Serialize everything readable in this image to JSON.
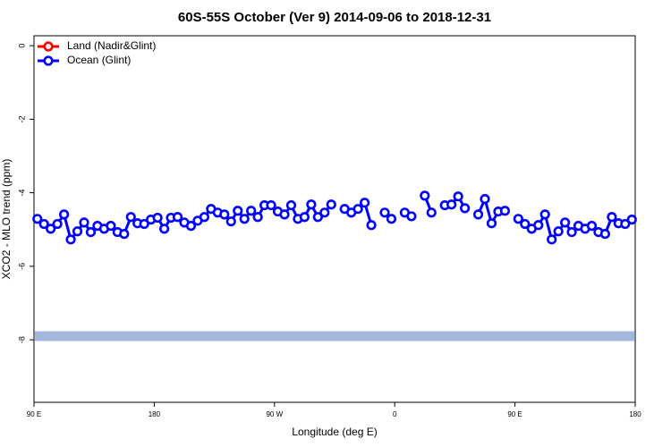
{
  "chart_data": {
    "type": "line",
    "title": "60S-55S October (Ver 9)   2014-09-06 to 2018-12-31",
    "x_label": "Longitude (deg E)",
    "y_label": "XCO2 - MLO trend (ppm)",
    "xlim": [
      90,
      540
    ],
    "xticks": [
      {
        "value": 90,
        "label": "90 E"
      },
      {
        "value": 180,
        "label": "180"
      },
      {
        "value": 270,
        "label": "90 W"
      },
      {
        "value": 360,
        "label": "0"
      },
      {
        "value": 450,
        "label": "90 E"
      },
      {
        "value": 540,
        "label": "180"
      }
    ],
    "ylim": [
      -9.7,
      0.27
    ],
    "yticks": [
      0,
      -2,
      -4,
      -6,
      -8
    ],
    "legend": "top-left",
    "reference_line": {
      "value": -7.9,
      "color": "#a3b8dc"
    },
    "x": [
      92.5,
      97.5,
      102.5,
      107.5,
      112.5,
      117.5,
      122.5,
      127.5,
      132.5,
      137.5,
      142.5,
      147.5,
      152.5,
      157.5,
      162.5,
      167.5,
      172.5,
      177.5,
      182.5,
      187.5,
      192.5,
      197.5,
      202.5,
      207.5,
      212.5,
      217.5,
      222.5,
      227.5,
      232.5,
      237.5,
      242.5,
      247.5,
      252.5,
      257.5,
      262.5,
      267.5,
      272.5,
      277.5,
      282.5,
      287.5,
      292.5,
      297.5,
      302.5,
      307.5,
      312.5,
      317.5,
      322.5,
      327.5,
      332.5,
      337.5,
      342.5,
      347.5,
      352.5,
      357.5,
      362.5,
      367.5,
      372.5,
      377.5,
      382.5,
      387.5,
      392.5,
      397.5,
      402.5,
      407.5,
      412.5,
      417.5,
      422.5,
      427.5,
      432.5,
      437.5,
      442.5,
      447.5,
      452.5,
      457.5,
      462.5,
      467.5,
      472.5,
      477.5,
      482.5,
      487.5,
      492.5,
      497.5,
      502.5,
      507.5,
      512.5,
      517.5,
      522.5,
      527.5,
      532.5,
      537.5
    ],
    "series": [
      {
        "name": "Land (Nadir&Glint)",
        "color": "#ff0000",
        "values": [
          null,
          null,
          null,
          null,
          null,
          null,
          null,
          null,
          null,
          null,
          null,
          null,
          null,
          null,
          null,
          null,
          null,
          null,
          null,
          null,
          null,
          null,
          null,
          null,
          null,
          null,
          null,
          null,
          null,
          null,
          null,
          null,
          null,
          null,
          null,
          null,
          null,
          null,
          null,
          null,
          null,
          null,
          null,
          null,
          null,
          null,
          null,
          null,
          null,
          null,
          null,
          null,
          null,
          null,
          null,
          null,
          null,
          null,
          null,
          null,
          null,
          null,
          null,
          null,
          null,
          null,
          null,
          null,
          null,
          null,
          null,
          null,
          null,
          null,
          null,
          null,
          null,
          null,
          null,
          null,
          null,
          null,
          null,
          null,
          null,
          null,
          null,
          null,
          null,
          null
        ]
      },
      {
        "name": "Ocean (Glint)",
        "color": "#0000ff",
        "values": [
          -4.71,
          -4.85,
          -4.98,
          -4.85,
          -4.59,
          -5.27,
          -5.05,
          -4.81,
          -5.07,
          -4.9,
          -4.98,
          -4.9,
          -5.07,
          -5.12,
          -4.66,
          -4.83,
          -4.85,
          -4.73,
          -4.68,
          -4.98,
          -4.68,
          -4.66,
          -4.81,
          -4.9,
          -4.76,
          -4.66,
          -4.44,
          -4.54,
          -4.59,
          -4.78,
          -4.49,
          -4.71,
          -4.49,
          -4.66,
          -4.34,
          -4.34,
          -4.51,
          -4.59,
          -4.34,
          -4.71,
          -4.66,
          -4.32,
          -4.66,
          -4.54,
          -4.32,
          null,
          -4.44,
          -4.54,
          -4.44,
          -4.27,
          -4.88,
          null,
          -4.54,
          -4.71,
          null,
          -4.54,
          -4.64,
          null,
          -4.08,
          -4.54,
          null,
          -4.34,
          -4.32,
          -4.1,
          -4.42,
          null,
          -4.59,
          -4.17,
          -4.83,
          -4.51,
          -4.49,
          null,
          -4.71,
          -4.85,
          -4.98,
          -4.88,
          -4.59,
          -5.27,
          -5.05,
          -4.81,
          -5.07,
          -4.9,
          -4.98,
          -4.9,
          -5.07,
          -5.12,
          -4.66,
          -4.83,
          -4.85,
          -4.73
        ]
      }
    ]
  }
}
